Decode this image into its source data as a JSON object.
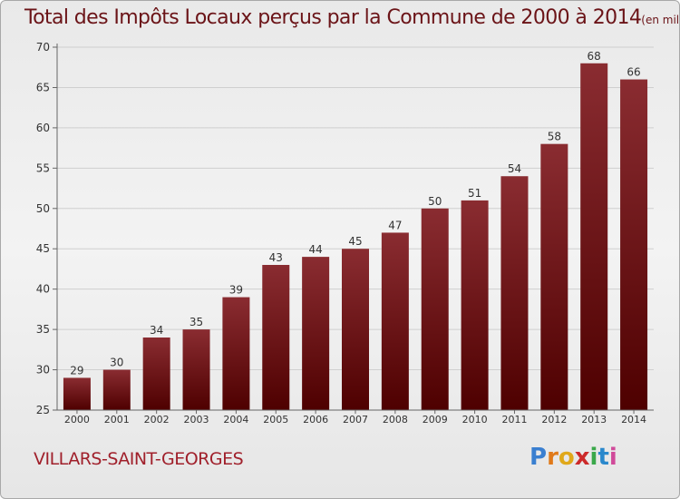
{
  "title": "Total des Impôts Locaux perçus par la Commune de 2000 à 2014",
  "title_unit": "(en milliers d'€)",
  "commune": "VILLARS-SAINT-GEORGES",
  "brand": {
    "letters": [
      "P",
      "r",
      "o",
      "x",
      "i",
      "t",
      "i"
    ],
    "colors": [
      "#3a7fd0",
      "#e07a1a",
      "#e0a81a",
      "#cc2a2a",
      "#3aa84a",
      "#2a88cc",
      "#d04a9a"
    ]
  },
  "colors": {
    "bar_top": "#8a2c31",
    "bar_bottom": "#4e0000",
    "grid": "#cfcfcf",
    "axis": "#666666",
    "text": "#333333"
  },
  "chart_data": {
    "type": "bar",
    "title": "Total des Impôts Locaux perçus par la Commune de 2000 à 2014",
    "xlabel": "",
    "ylabel": "en milliers d'€",
    "categories": [
      "2000",
      "2001",
      "2002",
      "2003",
      "2004",
      "2005",
      "2006",
      "2007",
      "2008",
      "2009",
      "2010",
      "2011",
      "2012",
      "2013",
      "2014"
    ],
    "values": [
      29,
      30,
      34,
      35,
      39,
      43,
      44,
      45,
      47,
      50,
      51,
      54,
      58,
      68,
      66
    ],
    "ylim": [
      25,
      70
    ],
    "yticks": [
      25,
      30,
      35,
      40,
      45,
      50,
      55,
      60,
      65,
      70
    ],
    "grid": true
  }
}
